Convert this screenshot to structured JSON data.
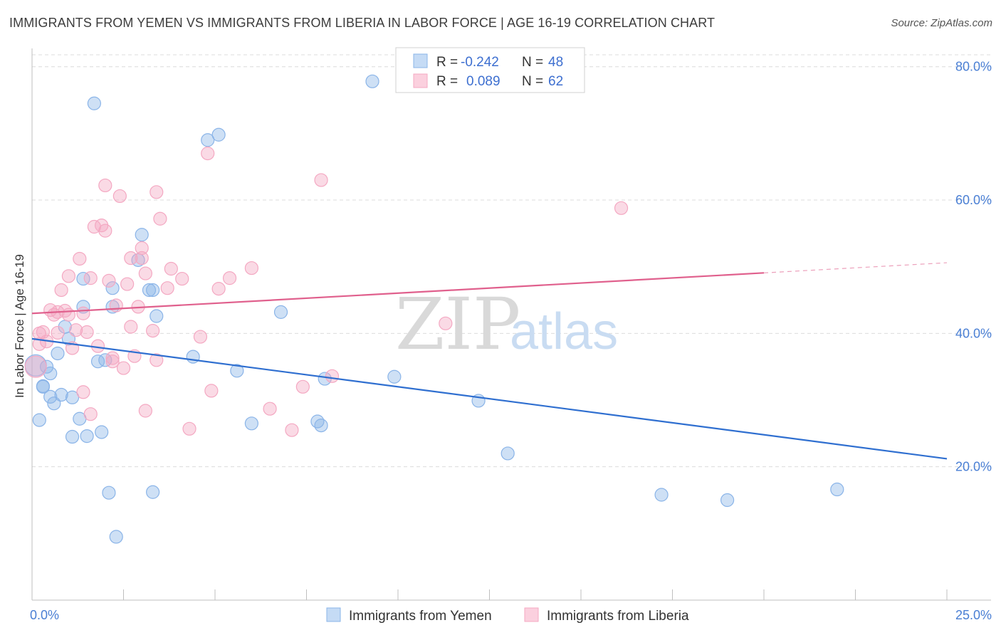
{
  "title": "IMMIGRANTS FROM YEMEN VS IMMIGRANTS FROM LIBERIA IN LABOR FORCE | AGE 16-19 CORRELATION CHART",
  "source": "Source: ZipAtlas.com",
  "watermark": {
    "zip": "ZIP",
    "atlas": "atlas"
  },
  "legend": {
    "r_label": "R =",
    "n_label": "N =",
    "rows": [
      {
        "r": "-0.242",
        "n": "48"
      },
      {
        "r": "0.089",
        "n": "62"
      }
    ]
  },
  "chart_data": {
    "type": "scatter",
    "xlabel": "",
    "ylabel": "In Labor Force | Age 16-19",
    "xlim": [
      0,
      25
    ],
    "ylim": [
      0,
      82
    ],
    "x_tick_labels": [
      {
        "value": 0,
        "label": "0.0%"
      },
      {
        "value": 25,
        "label": "25.0%"
      }
    ],
    "y_ticks": [
      {
        "value": 20,
        "label": "20.0%"
      },
      {
        "value": 40,
        "label": "40.0%"
      },
      {
        "value": 60,
        "label": "60.0%"
      },
      {
        "value": 80,
        "label": "80.0%"
      }
    ],
    "grid": "horizontal dashed",
    "legend_position": "top-center",
    "series": [
      {
        "name": "Immigrants from Yemen",
        "color": "#8ab4e8",
        "line_color": "#2f6fd0",
        "trend": {
          "x0": 0,
          "y0": 39.2,
          "x1": 25,
          "y1": 21.2,
          "solid_until": 25
        },
        "points": [
          [
            0.2,
            27
          ],
          [
            0.3,
            32
          ],
          [
            0.4,
            35
          ],
          [
            0.5,
            30.5
          ],
          [
            0.6,
            29.5
          ],
          [
            0.5,
            34
          ],
          [
            0.7,
            37
          ],
          [
            0.8,
            30.8
          ],
          [
            0.9,
            41
          ],
          [
            1.0,
            39.2
          ],
          [
            1.1,
            30.4
          ],
          [
            1.1,
            24.5
          ],
          [
            1.3,
            27.2
          ],
          [
            1.4,
            44
          ],
          [
            1.4,
            48.2
          ],
          [
            1.5,
            24.6
          ],
          [
            1.7,
            74.5
          ],
          [
            1.8,
            35.8
          ],
          [
            1.9,
            25.2
          ],
          [
            2.0,
            36
          ],
          [
            2.1,
            16.1
          ],
          [
            2.2,
            44
          ],
          [
            2.2,
            46.8
          ],
          [
            2.3,
            9.5
          ],
          [
            2.9,
            51
          ],
          [
            3.0,
            54.8
          ],
          [
            3.2,
            46.5
          ],
          [
            3.3,
            46.5
          ],
          [
            3.3,
            16.2
          ],
          [
            3.4,
            42.6
          ],
          [
            4.4,
            36.5
          ],
          [
            4.8,
            69
          ],
          [
            5.1,
            69.8
          ],
          [
            5.6,
            34.4
          ],
          [
            6.0,
            26.5
          ],
          [
            6.8,
            43.2
          ],
          [
            7.8,
            26.8
          ],
          [
            7.9,
            26.2
          ],
          [
            8.0,
            33.2
          ],
          [
            9.3,
            77.8
          ],
          [
            9.9,
            33.5
          ],
          [
            12.2,
            29.9
          ],
          [
            13.0,
            22
          ],
          [
            17.2,
            15.8
          ],
          [
            19.0,
            15
          ],
          [
            22.0,
            16.6
          ],
          [
            0.1,
            35.2
          ],
          [
            0.3,
            32.1
          ]
        ]
      },
      {
        "name": "Immigrants from Liberia",
        "color": "#f4a8c2",
        "line_color": "#e0608d",
        "trend": {
          "x0": 0,
          "y0": 43.0,
          "x1": 25,
          "y1": 50.6,
          "solid_until": 20
        },
        "points": [
          [
            0.1,
            35
          ],
          [
            0.2,
            40
          ],
          [
            0.3,
            40.2
          ],
          [
            0.4,
            38.8
          ],
          [
            0.5,
            43.5
          ],
          [
            0.6,
            42.8
          ],
          [
            0.7,
            43.2
          ],
          [
            0.8,
            46.5
          ],
          [
            0.9,
            43.4
          ],
          [
            1.0,
            42.8
          ],
          [
            1.0,
            48.6
          ],
          [
            1.1,
            37.8
          ],
          [
            1.2,
            40.5
          ],
          [
            1.3,
            51.2
          ],
          [
            1.4,
            31.2
          ],
          [
            1.4,
            43
          ],
          [
            1.6,
            27.9
          ],
          [
            1.6,
            48.3
          ],
          [
            1.7,
            56
          ],
          [
            1.8,
            38.1
          ],
          [
            1.9,
            56.2
          ],
          [
            2.0,
            62.2
          ],
          [
            2.0,
            55.4
          ],
          [
            2.1,
            47.9
          ],
          [
            2.2,
            35.8
          ],
          [
            2.3,
            44.2
          ],
          [
            2.4,
            60.6
          ],
          [
            2.5,
            34.8
          ],
          [
            2.6,
            47.4
          ],
          [
            2.7,
            51.3
          ],
          [
            2.7,
            41
          ],
          [
            2.8,
            36.6
          ],
          [
            2.9,
            44
          ],
          [
            3.0,
            51.3
          ],
          [
            3.0,
            52.8
          ],
          [
            3.1,
            49
          ],
          [
            3.1,
            28.4
          ],
          [
            3.3,
            40.4
          ],
          [
            3.4,
            36
          ],
          [
            3.4,
            61.2
          ],
          [
            3.5,
            57.2
          ],
          [
            3.7,
            46.8
          ],
          [
            3.8,
            49.7
          ],
          [
            4.1,
            48.2
          ],
          [
            4.3,
            25.7
          ],
          [
            4.6,
            39.5
          ],
          [
            4.8,
            67
          ],
          [
            4.9,
            31.4
          ],
          [
            5.1,
            46.7
          ],
          [
            5.4,
            48.3
          ],
          [
            6.0,
            49.8
          ],
          [
            6.5,
            28.7
          ],
          [
            7.1,
            25.5
          ],
          [
            7.4,
            32
          ],
          [
            7.9,
            63
          ],
          [
            8.2,
            33.6
          ],
          [
            11.3,
            41.5
          ],
          [
            16.1,
            58.8
          ],
          [
            0.2,
            38.4
          ],
          [
            0.7,
            40.1
          ],
          [
            2.2,
            36.3
          ],
          [
            1.5,
            40.2
          ]
        ]
      }
    ]
  }
}
